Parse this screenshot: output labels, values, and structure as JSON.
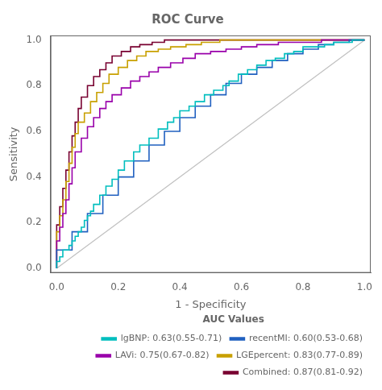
{
  "chart_data": {
    "type": "line",
    "title": "ROC Curve",
    "xlabel": "1 - Specificity",
    "ylabel": "Sensitivity",
    "xlim": [
      -0.02,
      1.02
    ],
    "ylim": [
      -0.02,
      1.02
    ],
    "xticks": [
      {
        "value": 0.0,
        "label": "0.0"
      },
      0.2,
      0.4,
      0.6,
      0.8,
      {
        "value": 1.0,
        "label": "1.0"
      }
    ],
    "yticks": [
      {
        "value": 0.0,
        "label": "0.0"
      },
      0.2,
      0.4,
      0.6,
      0.8,
      {
        "value": 1.0,
        "label": "1.0"
      }
    ],
    "grid": false,
    "legend": "lower right",
    "legend_title": "AUC Values",
    "marker": "none",
    "diagonal": {
      "x": [
        0,
        1
      ],
      "values": [
        0,
        1
      ],
      "color": "#C0C0C0",
      "line_style": "solid"
    },
    "series": [
      {
        "name": "lgBNP: 0.63(0.55-0.71)",
        "color": "#00BEBE",
        "line_style": "step",
        "x": [
          0.0,
          0.0,
          0.01,
          0.02,
          0.04,
          0.05,
          0.06,
          0.07,
          0.08,
          0.09,
          0.1,
          0.11,
          0.12,
          0.14,
          0.16,
          0.18,
          0.2,
          0.22,
          0.25,
          0.27,
          0.3,
          0.33,
          0.36,
          0.38,
          0.4,
          0.43,
          0.45,
          0.48,
          0.51,
          0.54,
          0.56,
          0.59,
          0.62,
          0.65,
          0.68,
          0.71,
          0.74,
          0.77,
          0.8,
          0.84,
          0.87,
          0.9,
          0.93,
          0.96,
          1.0
        ],
        "values": [
          0.0,
          0.01,
          0.03,
          0.05,
          0.08,
          0.1,
          0.12,
          0.14,
          0.16,
          0.18,
          0.21,
          0.23,
          0.25,
          0.28,
          0.32,
          0.36,
          0.39,
          0.43,
          0.47,
          0.51,
          0.54,
          0.57,
          0.61,
          0.64,
          0.66,
          0.69,
          0.71,
          0.73,
          0.76,
          0.78,
          0.8,
          0.82,
          0.85,
          0.87,
          0.89,
          0.91,
          0.92,
          0.94,
          0.95,
          0.97,
          0.97,
          0.98,
          0.99,
          0.99,
          1.0
        ]
      },
      {
        "name": "recentMI: 0.60(0.53-0.68)",
        "color": "#2060C0",
        "line_style": "step",
        "x": [
          0.0,
          0.05,
          0.1,
          0.15,
          0.2,
          0.25,
          0.3,
          0.35,
          0.4,
          0.45,
          0.5,
          0.55,
          0.6,
          0.65,
          0.7,
          0.75,
          0.8,
          0.85,
          0.9,
          0.95,
          1.0
        ],
        "values": [
          0.0,
          0.08,
          0.16,
          0.24,
          0.32,
          0.4,
          0.47,
          0.54,
          0.6,
          0.66,
          0.71,
          0.76,
          0.81,
          0.85,
          0.88,
          0.91,
          0.94,
          0.96,
          0.98,
          0.99,
          1.0
        ]
      },
      {
        "name": "LAVi: 0.75(0.67-0.82)",
        "color": "#9900AA",
        "line_style": "step",
        "x": [
          0.0,
          0.0,
          0.01,
          0.02,
          0.03,
          0.04,
          0.05,
          0.06,
          0.08,
          0.1,
          0.12,
          0.14,
          0.16,
          0.18,
          0.21,
          0.24,
          0.27,
          0.3,
          0.33,
          0.37,
          0.41,
          0.45,
          0.5,
          0.55,
          0.6,
          0.65,
          0.72,
          0.79,
          0.86,
          0.93,
          1.0
        ],
        "values": [
          0.0,
          0.06,
          0.12,
          0.18,
          0.24,
          0.3,
          0.37,
          0.44,
          0.51,
          0.57,
          0.62,
          0.66,
          0.7,
          0.73,
          0.76,
          0.79,
          0.82,
          0.84,
          0.86,
          0.88,
          0.9,
          0.92,
          0.94,
          0.95,
          0.96,
          0.97,
          0.98,
          0.99,
          0.99,
          1.0,
          1.0
        ]
      },
      {
        "name": "LGEpercent: 0.83(0.77-0.89)",
        "color": "#C8A000",
        "line_style": "step",
        "x": [
          0.0,
          0.0,
          0.01,
          0.02,
          0.03,
          0.04,
          0.05,
          0.06,
          0.07,
          0.09,
          0.11,
          0.13,
          0.15,
          0.17,
          0.2,
          0.23,
          0.26,
          0.29,
          0.33,
          0.37,
          0.42,
          0.47,
          0.53,
          0.59,
          0.66,
          0.73,
          0.81,
          0.89,
          1.0
        ],
        "values": [
          0.0,
          0.08,
          0.16,
          0.23,
          0.3,
          0.38,
          0.46,
          0.53,
          0.59,
          0.64,
          0.68,
          0.73,
          0.77,
          0.81,
          0.85,
          0.88,
          0.91,
          0.93,
          0.95,
          0.96,
          0.97,
          0.98,
          0.99,
          1.0,
          1.0,
          1.0,
          1.0,
          1.0,
          1.0
        ]
      },
      {
        "name": "Combined: 0.87(0.81-0.92)",
        "color": "#780030",
        "line_style": "step",
        "x": [
          0.0,
          0.0,
          0.01,
          0.02,
          0.03,
          0.04,
          0.05,
          0.06,
          0.07,
          0.08,
          0.1,
          0.12,
          0.14,
          0.16,
          0.18,
          0.21,
          0.24,
          0.27,
          0.31,
          0.35,
          0.4,
          0.45,
          0.51,
          0.57,
          0.64,
          0.72,
          0.8,
          0.89,
          1.0
        ],
        "values": [
          0.0,
          0.1,
          0.19,
          0.27,
          0.35,
          0.43,
          0.51,
          0.58,
          0.64,
          0.7,
          0.75,
          0.8,
          0.84,
          0.87,
          0.9,
          0.93,
          0.95,
          0.97,
          0.98,
          0.99,
          1.0,
          1.0,
          1.0,
          1.0,
          1.0,
          1.0,
          1.0,
          1.0,
          1.0
        ]
      }
    ]
  }
}
